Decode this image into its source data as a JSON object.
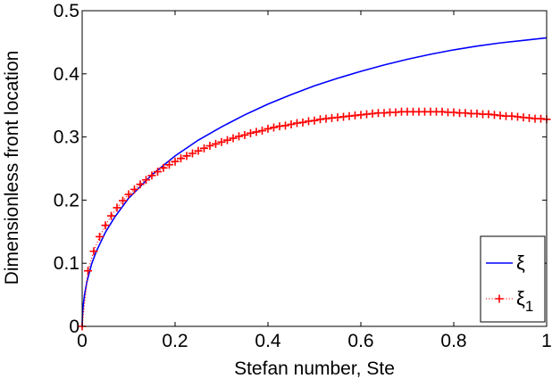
{
  "chart_data": {
    "type": "line",
    "title": "",
    "xlabel": "Stefan number, Ste",
    "ylabel": "Dimensionless front location",
    "xlim": [
      0,
      1
    ],
    "ylim": [
      0,
      0.5
    ],
    "x_ticks": [
      0,
      0.2,
      0.4,
      0.6,
      0.8,
      1
    ],
    "x_tick_labels": [
      "0",
      "0.2",
      "0.4",
      "0.6",
      "0.8",
      "1"
    ],
    "y_ticks": [
      0,
      0.1,
      0.2,
      0.3,
      0.4,
      0.5
    ],
    "y_tick_labels": [
      "0",
      "0.1",
      "0.2",
      "0.3",
      "0.4",
      "0.5"
    ],
    "grid": false,
    "legend_position": "bottom-right",
    "series": [
      {
        "name": "ξ",
        "name_base": "ξ",
        "name_sub": "",
        "style": "solid-line",
        "color": "#0000ff",
        "x": [
          0,
          0.0005,
          0.002,
          0.005,
          0.01,
          0.02,
          0.03,
          0.05,
          0.07,
          0.1,
          0.15,
          0.2,
          0.25,
          0.3,
          0.35,
          0.4,
          0.45,
          0.5,
          0.55,
          0.6,
          0.65,
          0.7,
          0.75,
          0.8,
          0.85,
          0.9,
          0.95,
          1.0
        ],
        "y": [
          0,
          0.016,
          0.032,
          0.05,
          0.07,
          0.098,
          0.118,
          0.149,
          0.173,
          0.203,
          0.24,
          0.27,
          0.295,
          0.316,
          0.335,
          0.352,
          0.367,
          0.381,
          0.393,
          0.404,
          0.414,
          0.423,
          0.431,
          0.438,
          0.444,
          0.449,
          0.453,
          0.457
        ]
      },
      {
        "name": "ξ1",
        "name_base": "ξ",
        "name_sub": "1",
        "style": "dotted-line-plus-markers",
        "color": "#ff0000",
        "x": [
          0,
          0.0125,
          0.025,
          0.0375,
          0.05,
          0.0625,
          0.075,
          0.0875,
          0.1,
          0.1125,
          0.125,
          0.1375,
          0.15,
          0.1625,
          0.175,
          0.1875,
          0.2,
          0.2125,
          0.225,
          0.2375,
          0.25,
          0.2625,
          0.275,
          0.2875,
          0.3,
          0.3125,
          0.325,
          0.3375,
          0.35,
          0.3625,
          0.375,
          0.3875,
          0.4,
          0.4125,
          0.425,
          0.4375,
          0.45,
          0.4625,
          0.475,
          0.4875,
          0.5,
          0.5125,
          0.525,
          0.5375,
          0.55,
          0.5625,
          0.575,
          0.5875,
          0.6,
          0.6125,
          0.625,
          0.6375,
          0.65,
          0.6625,
          0.675,
          0.6875,
          0.7,
          0.7125,
          0.725,
          0.7375,
          0.75,
          0.7625,
          0.775,
          0.7875,
          0.8,
          0.8125,
          0.825,
          0.8375,
          0.85,
          0.8625,
          0.875,
          0.8875,
          0.9,
          0.9125,
          0.925,
          0.9375,
          0.95,
          0.9625,
          0.975,
          0.9875,
          1.0
        ],
        "y": [
          0,
          0.088,
          0.119,
          0.142,
          0.16,
          0.175,
          0.188,
          0.199,
          0.209,
          0.217,
          0.225,
          0.232,
          0.239,
          0.245,
          0.251,
          0.256,
          0.261,
          0.266,
          0.27,
          0.274,
          0.278,
          0.282,
          0.286,
          0.289,
          0.292,
          0.295,
          0.298,
          0.301,
          0.303,
          0.306,
          0.308,
          0.31,
          0.313,
          0.315,
          0.317,
          0.318,
          0.32,
          0.322,
          0.323,
          0.325,
          0.326,
          0.328,
          0.329,
          0.33,
          0.331,
          0.332,
          0.333,
          0.334,
          0.335,
          0.336,
          0.337,
          0.338,
          0.338,
          0.339,
          0.339,
          0.34,
          0.34,
          0.34,
          0.34,
          0.34,
          0.34,
          0.34,
          0.34,
          0.339,
          0.339,
          0.338,
          0.338,
          0.337,
          0.337,
          0.336,
          0.336,
          0.335,
          0.334,
          0.333,
          0.333,
          0.332,
          0.331,
          0.33,
          0.329,
          0.329,
          0.328
        ]
      }
    ]
  }
}
